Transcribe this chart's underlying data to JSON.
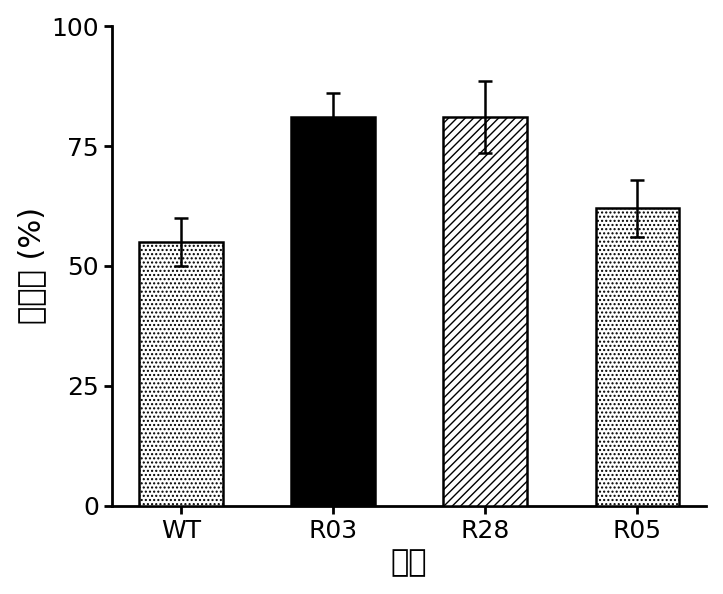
{
  "categories": [
    "WT",
    "R03",
    "R28",
    "R05"
  ],
  "values": [
    55.0,
    81.0,
    81.0,
    62.0
  ],
  "errors": [
    5.0,
    5.0,
    7.5,
    6.0
  ],
  "bar_colors": [
    "#ffffff",
    "#000000",
    "#ffffff",
    "#ffffff"
  ],
  "bar_hatch": [
    "....",
    "",
    "////",
    "...."
  ],
  "bar_edgecolors": [
    "#000000",
    "#000000",
    "#000000",
    "#000000"
  ],
  "ylabel": "抑制率 (%)",
  "xlabel": "菌株",
  "ylim": [
    0,
    100
  ],
  "yticks": [
    0,
    25,
    50,
    75,
    100
  ],
  "bar_width": 0.55,
  "ylabel_fontsize": 22,
  "xlabel_fontsize": 22,
  "tick_fontsize": 18,
  "capsize": 5,
  "elinewidth": 1.8,
  "bar_linewidth": 1.8
}
